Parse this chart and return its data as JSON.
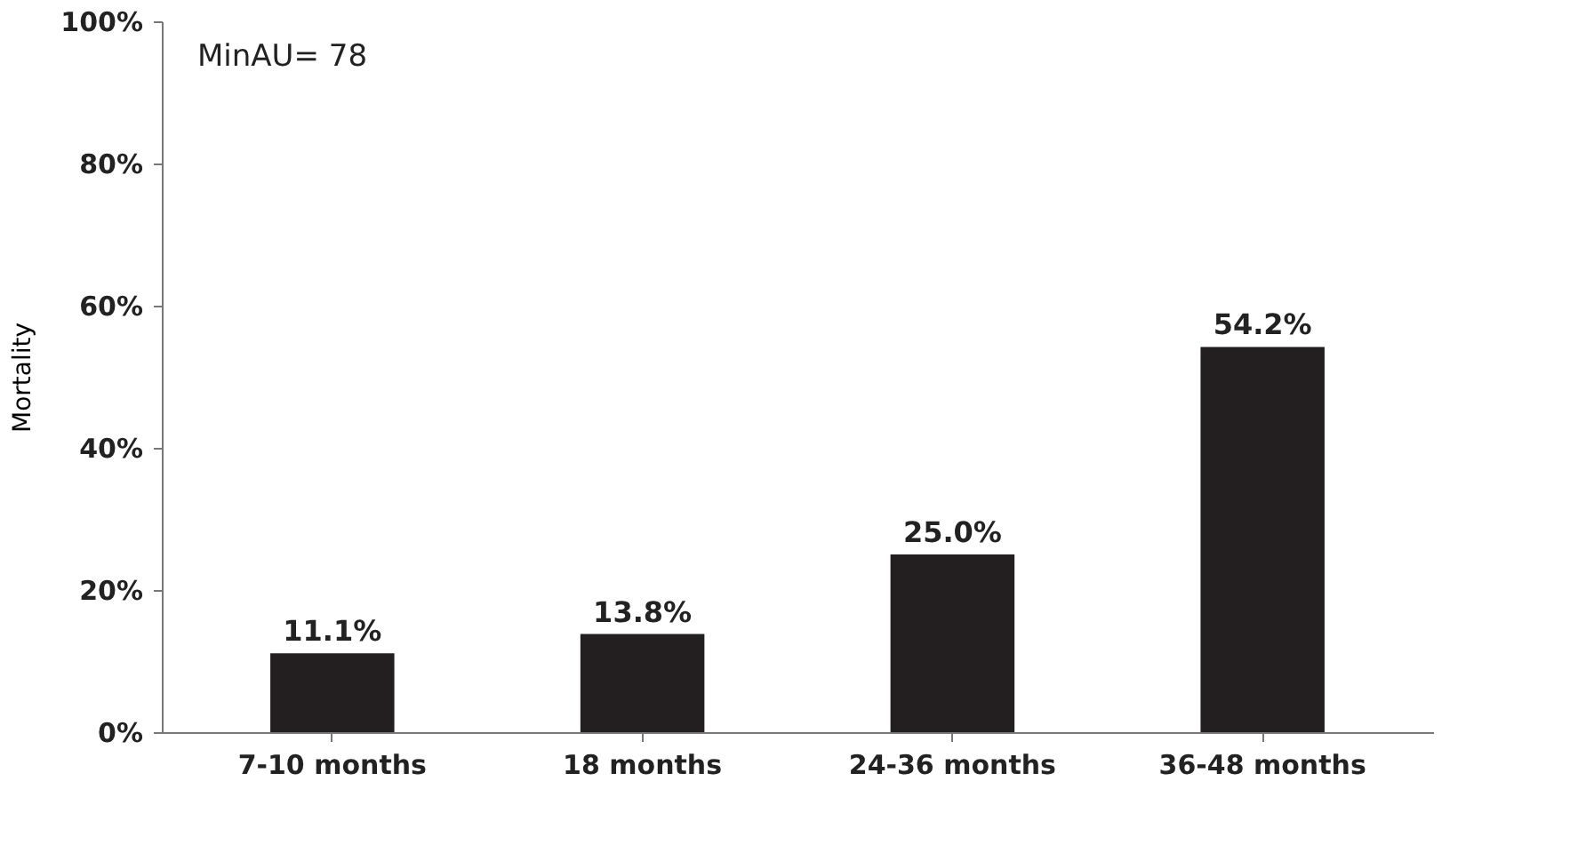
{
  "chart_data": {
    "type": "bar",
    "ylabel": "Mortality",
    "categories": [
      "7-10 months",
      "18 months",
      "24-36 months",
      "36-48 months"
    ],
    "values": [
      11.1,
      13.8,
      25.0,
      54.2
    ],
    "value_labels": [
      "11.1%",
      "13.8%",
      "25.0%",
      "54.2%"
    ],
    "color": "#231f20",
    "ylim": [
      0,
      100
    ],
    "yticks": [
      {
        "value": 0,
        "label": "0%"
      },
      {
        "value": 20,
        "label": "20%"
      },
      {
        "value": 40,
        "label": "40%"
      },
      {
        "value": 60,
        "label": "60%"
      },
      {
        "value": 80,
        "label": "80%"
      },
      {
        "value": 100,
        "label": "100%"
      }
    ],
    "grid": false,
    "annotations": [
      "MinAU= 78"
    ]
  }
}
